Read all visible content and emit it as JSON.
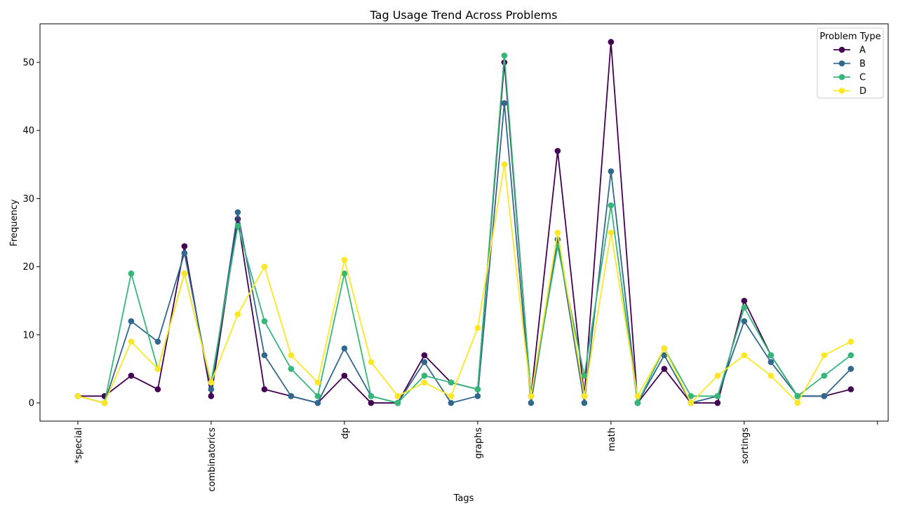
{
  "chart_data": {
    "type": "line",
    "title": "Tag Usage Trend Across Problems",
    "xlabel": "Tags",
    "ylabel": "Frequency",
    "x": [
      0,
      1,
      2,
      3,
      4,
      5,
      6,
      7,
      8,
      9,
      10,
      11,
      12,
      13,
      14,
      15,
      16,
      17,
      18,
      19,
      20,
      21,
      22,
      23,
      24,
      25,
      26,
      27,
      28,
      29
    ],
    "xticks": [
      0,
      5,
      10,
      15,
      20,
      25,
      30
    ],
    "xtick_labels": [
      "*special",
      "combinatorics",
      "dp",
      "graphs",
      "math",
      "sortings",
      ""
    ],
    "xlim": [
      -1.42,
      30.4
    ],
    "ylim": [
      -2.67,
      55.66
    ],
    "yticks": [
      0,
      10,
      20,
      30,
      40,
      50
    ],
    "grid": false,
    "legend": {
      "title": "Problem Type",
      "placement": "top-right"
    },
    "series": [
      {
        "name": "A",
        "color": "#440154",
        "values": [
          1,
          1,
          4,
          2,
          23,
          1,
          27,
          2,
          1,
          0,
          4,
          0,
          0,
          7,
          3,
          2,
          50,
          1,
          37,
          1,
          53,
          0,
          5,
          0,
          0,
          15,
          7,
          1,
          1,
          2
        ]
      },
      {
        "name": "B",
        "color": "#31688e",
        "values": [
          1,
          0,
          12,
          9,
          22,
          2,
          28,
          7,
          1,
          0,
          8,
          1,
          0,
          6,
          0,
          1,
          44,
          0,
          24,
          0,
          34,
          0,
          7,
          0,
          1,
          12,
          6,
          1,
          1,
          5
        ]
      },
      {
        "name": "C",
        "color": "#35b779",
        "values": [
          1,
          0,
          19,
          5,
          19,
          3,
          26,
          12,
          5,
          1,
          19,
          1,
          0,
          4,
          3,
          2,
          51,
          1,
          23,
          4,
          29,
          0,
          8,
          1,
          1,
          14,
          7,
          1,
          4,
          7
        ]
      },
      {
        "name": "D",
        "color": "#fde725",
        "values": [
          1,
          0,
          9,
          5,
          19,
          3,
          13,
          20,
          7,
          3,
          21,
          6,
          1,
          3,
          1,
          11,
          35,
          1,
          25,
          1,
          25,
          1,
          8,
          0,
          4,
          7,
          4,
          0,
          7,
          9
        ]
      }
    ]
  }
}
